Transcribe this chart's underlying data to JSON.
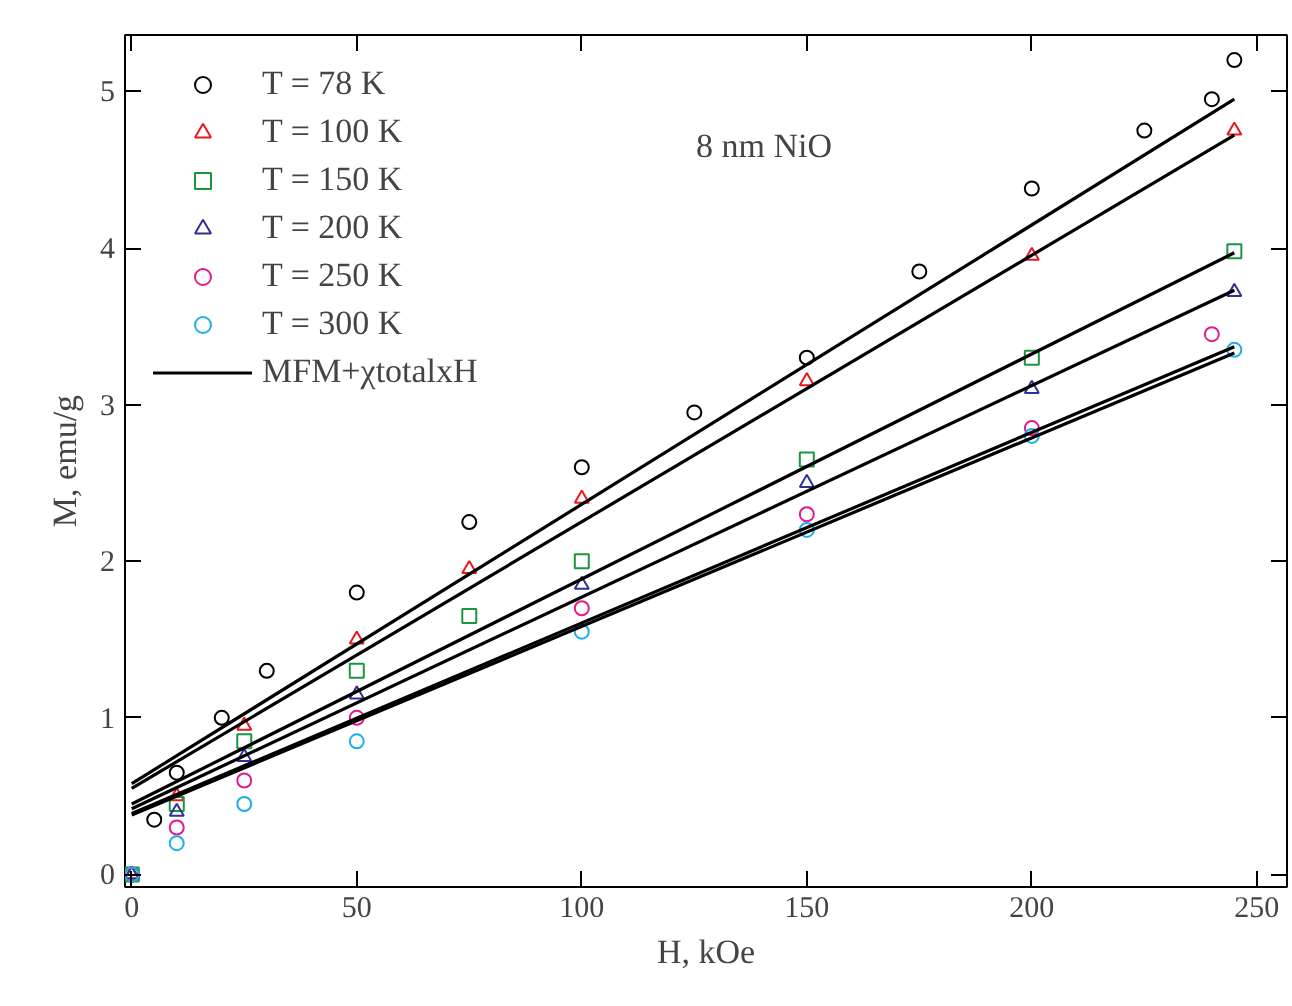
{
  "chart_data": {
    "type": "scatter",
    "xlabel": "H, kOe",
    "ylabel": "M, emu/g",
    "xlim": [
      -1.5,
      256.7
    ],
    "ylim": [
      -0.08,
      5.36
    ],
    "xticks": [
      0,
      50,
      100,
      150,
      200,
      250
    ],
    "yticks": [
      0,
      1,
      2,
      3,
      4,
      5
    ],
    "grid": false,
    "legend": "top left",
    "annotations": [
      "8 nm NiO"
    ],
    "series": [
      {
        "name": "T = 78 K",
        "color": "#000000",
        "marker": "circle",
        "x": [
          0,
          5,
          10,
          20,
          30,
          50,
          75,
          100,
          125,
          150,
          175,
          200,
          225,
          240,
          245
        ],
        "values": [
          0,
          0.35,
          0.65,
          1.0,
          1.3,
          1.8,
          2.25,
          2.6,
          2.95,
          3.3,
          3.85,
          4.38,
          4.75,
          4.95,
          5.2
        ]
      },
      {
        "name": "T = 100 K",
        "color": "#e8191f",
        "marker": "triangle",
        "x": [
          0,
          10,
          25,
          50,
          75,
          100,
          150,
          200,
          245
        ],
        "values": [
          0,
          0.5,
          0.95,
          1.5,
          1.95,
          2.4,
          3.15,
          3.95,
          4.75
        ]
      },
      {
        "name": "T = 150 K",
        "color": "#1a9641",
        "marker": "square",
        "x": [
          0,
          10,
          25,
          50,
          75,
          100,
          150,
          200,
          245
        ],
        "values": [
          0,
          0.45,
          0.85,
          1.3,
          1.65,
          2.0,
          2.65,
          3.3,
          3.98
        ]
      },
      {
        "name": "T = 200 K",
        "color": "#2e3192",
        "marker": "triangle",
        "x": [
          0,
          10,
          25,
          50,
          100,
          150,
          200,
          245
        ],
        "values": [
          0,
          0.4,
          0.75,
          1.15,
          1.85,
          2.5,
          3.1,
          3.72
        ]
      },
      {
        "name": "T = 250 K",
        "color": "#e5198a",
        "marker": "circle",
        "x": [
          0,
          10,
          25,
          50,
          100,
          150,
          200,
          240
        ],
        "values": [
          0,
          0.3,
          0.6,
          1.0,
          1.7,
          2.3,
          2.85,
          3.45
        ]
      },
      {
        "name": "T = 300 K",
        "color": "#1eaee8",
        "marker": "circle",
        "x": [
          0,
          10,
          25,
          50,
          100,
          150,
          200,
          245
        ],
        "values": [
          0,
          0.2,
          0.45,
          0.85,
          1.55,
          2.2,
          2.8,
          3.35
        ]
      },
      {
        "name": "MFM+χtotalxH",
        "type": "line",
        "color": "#000000",
        "x": [
          0,
          245
        ],
        "values": [
          0.58,
          4.95
        ]
      },
      {
        "type": "line",
        "color": "#000000",
        "x": [
          0,
          245
        ],
        "values": [
          0.55,
          4.72
        ]
      },
      {
        "type": "line",
        "color": "#000000",
        "x": [
          0,
          245
        ],
        "values": [
          0.45,
          3.97
        ]
      },
      {
        "type": "line",
        "color": "#000000",
        "x": [
          0,
          245
        ],
        "values": [
          0.42,
          3.73
        ]
      },
      {
        "type": "line",
        "color": "#000000",
        "x": [
          0,
          245
        ],
        "values": [
          0.39,
          3.37
        ]
      },
      {
        "type": "line",
        "color": "#000000",
        "x": [
          0,
          245
        ],
        "values": [
          0.38,
          3.33
        ]
      }
    ]
  }
}
